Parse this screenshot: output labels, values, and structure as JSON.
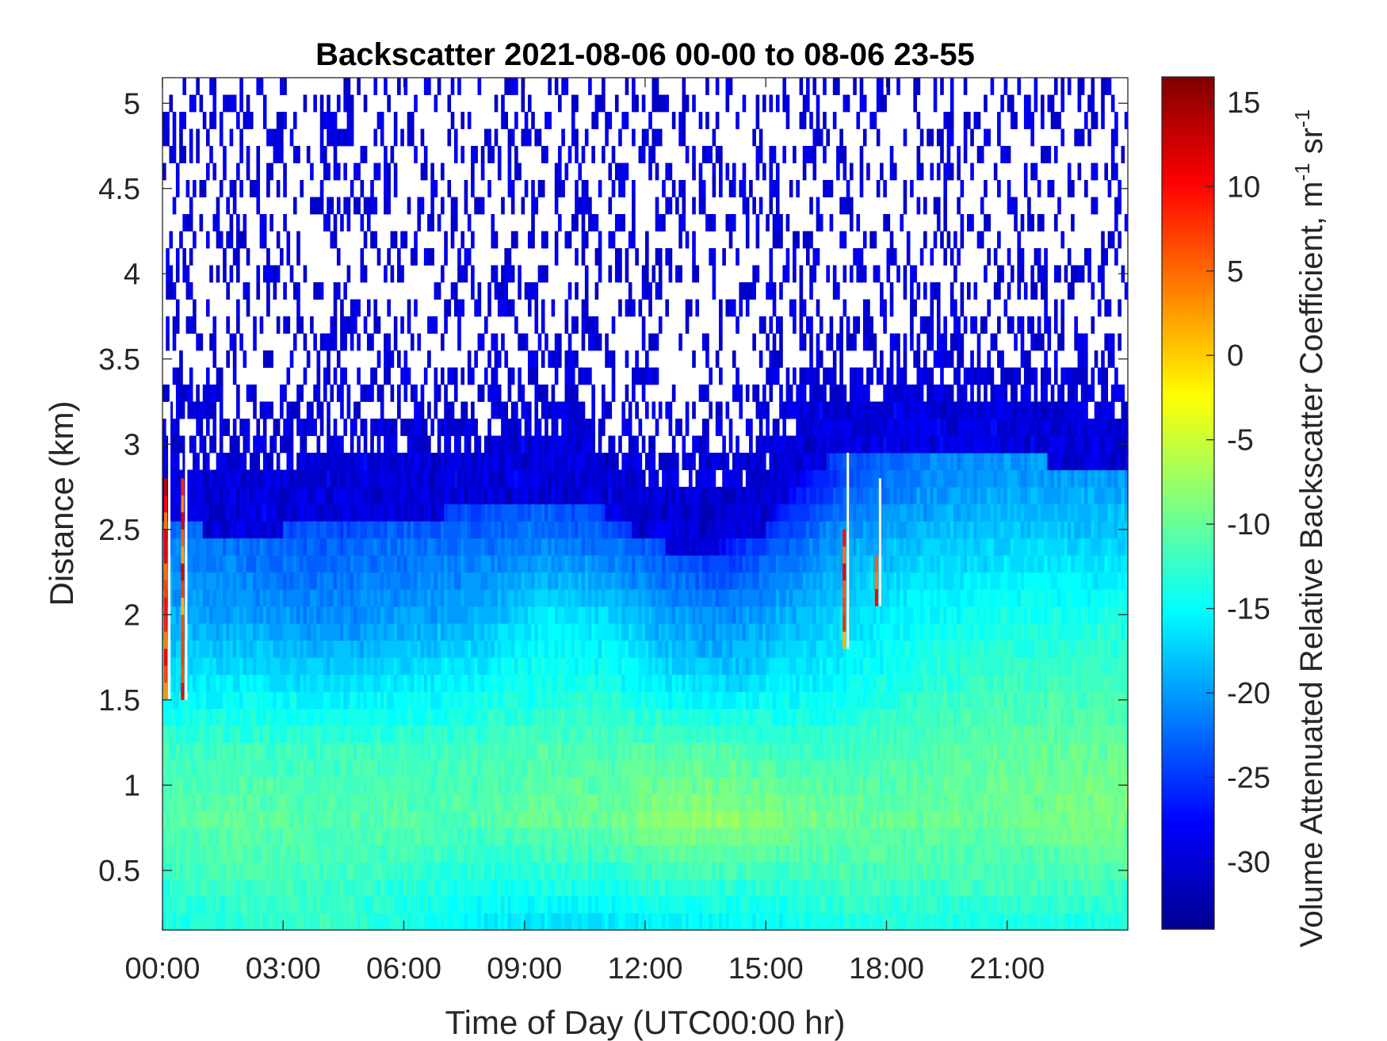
{
  "chart_data": {
    "type": "heatmap",
    "title": "Backscatter 2021-08-06 00-00 to 08-06 23-55",
    "xlabel": "Time of Day (UTC00:00 hr)",
    "ylabel": "Distance (km)",
    "colorbar_label": "Volume Attenuated Relative Backscatter Coefficient, m",
    "colorbar_label_units": {
      "m_exp": "-1",
      "sr": "sr",
      "sr_exp": "-1"
    },
    "colormap": "jet",
    "xlim_hours": [
      0,
      24
    ],
    "ylim_km": [
      0.15,
      5.15
    ],
    "clim": [
      -34,
      16.5
    ],
    "x_ticks": [
      {
        "value": 0,
        "label": "00:00"
      },
      {
        "value": 3,
        "label": "03:00"
      },
      {
        "value": 6,
        "label": "06:00"
      },
      {
        "value": 9,
        "label": "09:00"
      },
      {
        "value": 12,
        "label": "12:00"
      },
      {
        "value": 15,
        "label": "15:00"
      },
      {
        "value": 18,
        "label": "18:00"
      },
      {
        "value": 21,
        "label": "21:00"
      }
    ],
    "y_ticks": [
      {
        "value": 0.5,
        "label": "0.5"
      },
      {
        "value": 1,
        "label": "1"
      },
      {
        "value": 1.5,
        "label": "1.5"
      },
      {
        "value": 2,
        "label": "2"
      },
      {
        "value": 2.5,
        "label": "2.5"
      },
      {
        "value": 3,
        "label": "3"
      },
      {
        "value": 3.5,
        "label": "3.5"
      },
      {
        "value": 4,
        "label": "4"
      },
      {
        "value": 4.5,
        "label": "4.5"
      },
      {
        "value": 5,
        "label": "5"
      }
    ],
    "colorbar_ticks": [
      {
        "value": 15,
        "label": "15"
      },
      {
        "value": 10,
        "label": "10"
      },
      {
        "value": 5,
        "label": "5"
      },
      {
        "value": 0,
        "label": "0"
      },
      {
        "value": -5,
        "label": "-5"
      },
      {
        "value": -10,
        "label": "-10"
      },
      {
        "value": -15,
        "label": "-15"
      },
      {
        "value": -20,
        "label": "-20"
      },
      {
        "value": -25,
        "label": "-25"
      },
      {
        "value": -30,
        "label": "-30"
      }
    ],
    "grid": false,
    "time_step_minutes": 5,
    "range_gate_km": 0.1,
    "boundary_layer_top_km": {
      "hours": [
        0,
        1,
        2,
        3,
        4,
        5,
        6,
        7,
        8,
        9,
        10,
        11,
        12,
        13,
        14,
        15,
        16,
        17,
        18,
        19,
        20,
        21,
        22,
        23,
        24
      ],
      "values": [
        2.85,
        2.85,
        2.8,
        2.85,
        2.95,
        2.95,
        2.95,
        2.95,
        3.0,
        3.05,
        3.05,
        2.95,
        2.8,
        2.7,
        2.75,
        2.85,
        3.2,
        3.3,
        3.3,
        3.3,
        3.3,
        3.3,
        3.25,
        3.2,
        3.15
      ]
    },
    "profile_key_levels_km": [
      0.15,
      0.4,
      0.8,
      1.2,
      1.6,
      2.0,
      2.4,
      2.8
    ],
    "profile_key_values": {
      "hours": [
        0,
        2,
        4,
        6,
        8,
        9.5,
        11,
        12.5,
        14,
        15.5,
        17,
        19,
        21,
        23,
        24
      ],
      "columns": [
        [
          -14,
          -13,
          -11,
          -12,
          -16,
          -19,
          -21,
          -25
        ],
        [
          -13,
          -12,
          -10,
          -12,
          -16,
          -20,
          -22,
          -27
        ],
        [
          -12,
          -12,
          -11,
          -12,
          -17,
          -21,
          -23,
          -27
        ],
        [
          -14,
          -13,
          -11,
          -12,
          -16,
          -20,
          -22,
          -27
        ],
        [
          -16,
          -14,
          -11,
          -12,
          -15,
          -19,
          -22,
          -26
        ],
        [
          -17,
          -14,
          -10,
          -11,
          -14,
          -16,
          -21,
          -25
        ],
        [
          -17,
          -14,
          -10,
          -11,
          -14,
          -17,
          -22,
          -27
        ],
        [
          -16,
          -13,
          -8,
          -11,
          -16,
          -20,
          -24,
          -30
        ],
        [
          -16,
          -13,
          -8,
          -11,
          -17,
          -21,
          -26,
          -31
        ],
        [
          -15,
          -13,
          -9,
          -12,
          -16,
          -19,
          -23,
          -29
        ],
        [
          -14,
          -12,
          -10,
          -12,
          -15,
          -17,
          -19,
          -24
        ],
        [
          -14,
          -12,
          -10,
          -11,
          -13,
          -15,
          -18,
          -21
        ],
        [
          -14,
          -12,
          -10,
          -10,
          -12,
          -14,
          -17,
          -20
        ],
        [
          -14,
          -12,
          -9,
          -10,
          -12,
          -14,
          -17,
          -20
        ],
        [
          -14,
          -12,
          -9,
          -10,
          -12,
          -14,
          -17,
          -20
        ]
      ]
    },
    "spike_columns": [
      {
        "hour": 0.08,
        "from_km": 1.5,
        "to_km": 2.75,
        "peak": 14
      },
      {
        "hour": 0.5,
        "from_km": 1.5,
        "to_km": 2.75,
        "peak": 13
      },
      {
        "hour": 16.95,
        "from_km": 1.8,
        "to_km": 2.45,
        "peak": 12
      },
      {
        "hour": 17.75,
        "from_km": 2.05,
        "to_km": 2.3,
        "peak": 12
      }
    ]
  }
}
